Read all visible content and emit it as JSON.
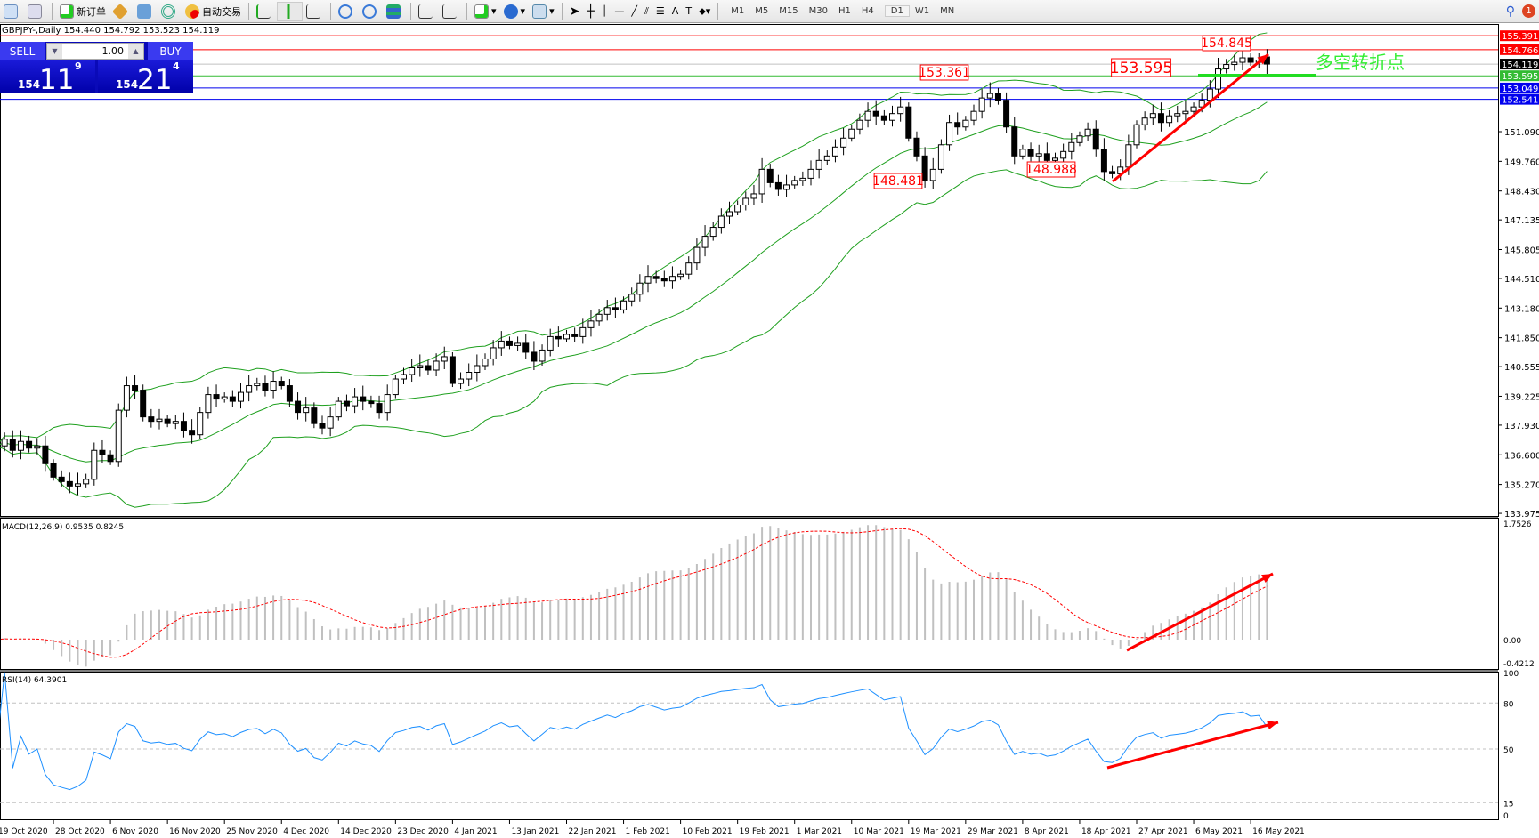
{
  "toolbar": {
    "new_order": "新订单",
    "auto_trade": "自动交易",
    "timeframes": [
      "M1",
      "M5",
      "M15",
      "M30",
      "H1",
      "H4",
      "D1",
      "W1",
      "MN"
    ],
    "active_timeframe": "D1",
    "notification_count": "1"
  },
  "chart_header": "GBPJPY-,Daily  154.440 154.792 153.523 154.119",
  "trade_panel": {
    "sell_label": "SELL",
    "buy_label": "BUY",
    "lot": "1.00",
    "sell_big": "154",
    "sell_mid": "11",
    "sell_sup": "9",
    "buy_big": "154",
    "buy_mid": "21",
    "buy_sup": "4"
  },
  "colors": {
    "bull": "#ffffff",
    "bear": "#000000",
    "bands": "#1fa01f",
    "macd_hist": "#c0c0c0",
    "macd_signal": "#ff0000",
    "rsi": "#1e90ff",
    "annotation": "#ff0000",
    "turn_text": "#33ee33"
  },
  "annotations": {
    "labels": [
      "153.361",
      "148.481",
      "148.988",
      "153.595",
      "154.845"
    ],
    "turn_point_text": "多空转折点"
  },
  "price_lines": [
    {
      "value": "155.391",
      "color": "#ff0000"
    },
    {
      "value": "154.766",
      "color": "#ff0000"
    },
    {
      "value": "154.119",
      "color": "#000000"
    },
    {
      "value": "153.595",
      "color": "#33bb33"
    },
    {
      "value": "153.049",
      "color": "#0000ee"
    },
    {
      "value": "152.541",
      "color": "#0000ee"
    }
  ],
  "chart_data": {
    "type": "candlestick",
    "symbol": "GBPJPY-",
    "period": "Daily",
    "last_bar": {
      "open": 154.44,
      "high": 154.792,
      "low": 153.523,
      "close": 154.119
    },
    "closes": [
      137.0,
      137.3,
      136.8,
      137.2,
      136.9,
      137.0,
      136.2,
      135.6,
      135.4,
      135.2,
      135.3,
      135.5,
      136.8,
      136.6,
      136.3,
      138.6,
      139.7,
      139.5,
      138.3,
      138.1,
      138.2,
      138.0,
      138.1,
      137.7,
      137.5,
      138.5,
      139.3,
      139.1,
      139.2,
      139.0,
      139.4,
      139.7,
      139.8,
      139.5,
      139.9,
      139.7,
      139.0,
      138.5,
      138.7,
      138.0,
      137.8,
      138.3,
      139.0,
      138.8,
      139.2,
      139.0,
      138.9,
      138.5,
      139.3,
      140.0,
      140.2,
      140.5,
      140.6,
      140.4,
      140.8,
      141.0,
      139.8,
      140.0,
      140.3,
      140.6,
      140.9,
      141.4,
      141.7,
      141.5,
      141.6,
      141.2,
      140.8,
      141.3,
      141.9,
      141.8,
      142.0,
      141.9,
      142.3,
      142.6,
      142.9,
      143.2,
      143.1,
      143.5,
      143.8,
      144.3,
      144.6,
      144.5,
      144.4,
      144.6,
      144.7,
      145.2,
      145.9,
      146.4,
      146.8,
      147.3,
      147.5,
      147.8,
      148.1,
      148.3,
      149.4,
      148.8,
      148.5,
      148.7,
      148.9,
      149.0,
      149.4,
      149.8,
      150.0,
      150.4,
      150.8,
      151.2,
      151.6,
      152.0,
      151.8,
      151.6,
      151.9,
      152.2,
      150.8,
      150.0,
      148.9,
      149.4,
      150.5,
      151.5,
      151.3,
      151.6,
      152.0,
      152.6,
      152.8,
      152.5,
      151.3,
      150.0,
      150.3,
      150.0,
      150.1,
      149.8,
      149.9,
      150.2,
      150.6,
      150.9,
      151.2,
      150.3,
      149.3,
      149.2,
      149.5,
      150.5,
      151.4,
      151.7,
      151.9,
      151.5,
      151.8,
      151.9,
      152.0,
      152.2,
      152.5,
      153.0,
      153.9,
      154.1,
      154.2,
      154.4,
      154.2,
      154.3,
      154.119
    ],
    "price_ticks": [
      "151.090",
      "149.760",
      "148.430",
      "147.135",
      "145.805",
      "144.510",
      "143.180",
      "141.850",
      "140.555",
      "139.225",
      "137.930",
      "136.600",
      "135.270",
      "133.975"
    ],
    "date_labels": [
      "19 Oct 2020",
      "28 Oct 2020",
      "6 Nov 2020",
      "16 Nov 2020",
      "25 Nov 2020",
      "4 Dec 2020",
      "14 Dec 2020",
      "23 Dec 2020",
      "4 Jan 2021",
      "13 Jan 2021",
      "22 Jan 2021",
      "1 Feb 2021",
      "10 Feb 2021",
      "19 Feb 2021",
      "1 Mar 2021",
      "10 Mar 2021",
      "19 Mar 2021",
      "29 Mar 2021",
      "8 Apr 2021",
      "18 Apr 2021",
      "27 Apr 2021",
      "6 May 2021",
      "16 May 2021"
    ],
    "indicators": {
      "bollinger": "Bollinger Bands",
      "macd": {
        "label": "MACD(12,26,9) 0.9535 0.8245",
        "ticks": [
          "1.7526",
          "0.00",
          "-0.4212"
        ],
        "range": [
          -0.4212,
          1.7526
        ]
      },
      "rsi": {
        "label": "RSI(14) 64.3901",
        "ticks": [
          "100",
          "80",
          "50",
          "15",
          "0"
        ],
        "levels": [
          80,
          50,
          15
        ]
      }
    }
  }
}
